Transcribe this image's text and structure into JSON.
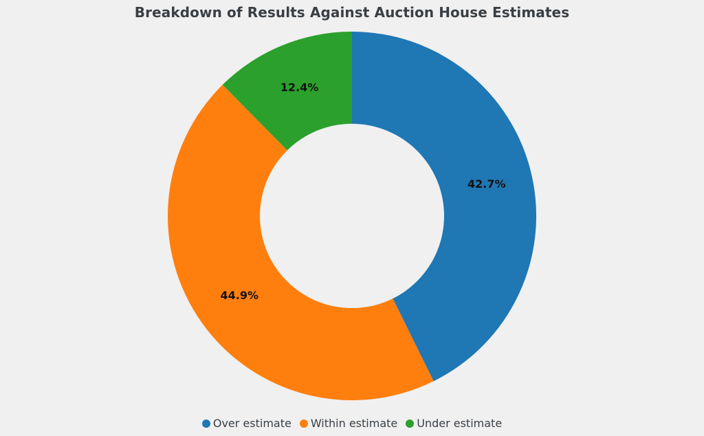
{
  "chart_data": {
    "type": "pie",
    "variant": "donut",
    "title": "Breakdown of Results Against Auction House Estimates",
    "categories": [
      "Over estimate",
      "Within estimate",
      "Under estimate"
    ],
    "values": [
      42.7,
      44.9,
      12.4
    ],
    "value_labels": [
      "42.7%",
      "44.9%",
      "12.4%"
    ],
    "colors": [
      "#1f77b4",
      "#ff7f0e",
      "#2ca02c"
    ],
    "start_angle": "top (12 o'clock)",
    "direction": "clockwise",
    "legend": {
      "position": "bottom-center",
      "entries": [
        "Over estimate",
        "Within estimate",
        "Under estimate"
      ]
    }
  }
}
